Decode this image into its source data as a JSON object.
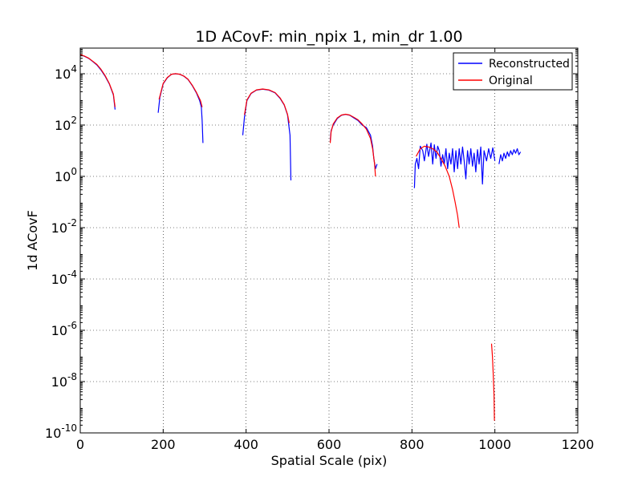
{
  "chart_data": {
    "type": "line",
    "title": "1D ACovF: min_npix 1, min_dr 1.00",
    "xlabel": "Spatial Scale (pix)",
    "ylabel": "1d ACovF",
    "xlim": [
      0,
      1200
    ],
    "ylim": [
      1e-10,
      100000.0
    ],
    "yscale": "log",
    "grid": true,
    "legend_position": "top-right",
    "x_ticks": [
      0,
      200,
      400,
      600,
      800,
      1000,
      1200
    ],
    "x_tick_labels": [
      "0",
      "200",
      "400",
      "600",
      "800",
      "1000",
      "1200"
    ],
    "y_ticks": [
      {
        "base": "10",
        "exp": "4"
      },
      {
        "base": "10",
        "exp": "2"
      },
      {
        "base": "10",
        "exp": "0"
      },
      {
        "base": "10",
        "exp": "-2"
      },
      {
        "base": "10",
        "exp": "-4"
      },
      {
        "base": "10",
        "exp": "-6"
      },
      {
        "base": "10",
        "exp": "-8"
      },
      {
        "base": "10",
        "exp": "-10"
      }
    ],
    "series": [
      {
        "name": "Reconstructed",
        "color": "#0000ff",
        "segments": [
          [
            [
              0,
              55000
            ],
            [
              10,
              48000
            ],
            [
              20,
              40000
            ],
            [
              30,
              30000
            ],
            [
              40,
              22000
            ],
            [
              50,
              14000
            ],
            [
              60,
              8000
            ],
            [
              70,
              4000
            ],
            [
              80,
              1500
            ],
            [
              84,
              400
            ]
          ],
          [
            [
              188,
              300
            ],
            [
              192,
              1200
            ],
            [
              200,
              4000
            ],
            [
              210,
              7000
            ],
            [
              220,
              9500
            ],
            [
              230,
              10000
            ],
            [
              240,
              9500
            ],
            [
              250,
              8000
            ],
            [
              260,
              6000
            ],
            [
              270,
              3500
            ],
            [
              280,
              1800
            ],
            [
              288,
              900
            ],
            [
              292,
              500
            ],
            [
              294,
              150
            ],
            [
              296,
              20
            ]
          ],
          [
            [
              392,
              40
            ],
            [
              396,
              200
            ],
            [
              402,
              900
            ],
            [
              412,
              1700
            ],
            [
              425,
              2300
            ],
            [
              440,
              2500
            ],
            [
              455,
              2300
            ],
            [
              470,
              1800
            ],
            [
              482,
              1100
            ],
            [
              492,
              600
            ],
            [
              500,
              250
            ],
            [
              506,
              40
            ],
            [
              508,
              0.7
            ]
          ],
          [
            [
              603,
              25
            ],
            [
              605,
              60
            ],
            [
              610,
              100
            ],
            [
              620,
              180
            ],
            [
              630,
              240
            ],
            [
              640,
              260
            ],
            [
              650,
              240
            ],
            [
              660,
              190
            ],
            [
              670,
              150
            ],
            [
              680,
              100
            ],
            [
              690,
              80
            ],
            [
              700,
              40
            ],
            [
              705,
              15
            ],
            [
              708,
              5
            ],
            [
              712,
              2
            ],
            [
              716,
              3
            ]
          ],
          [
            [
              806,
              0.35
            ],
            [
              808,
              3
            ],
            [
              812,
              5
            ],
            [
              816,
              2
            ],
            [
              820,
              15
            ],
            [
              826,
              10
            ],
            [
              830,
              4
            ],
            [
              836,
              18
            ],
            [
              840,
              6
            ],
            [
              846,
              20
            ],
            [
              850,
              3
            ],
            [
              854,
              17
            ],
            [
              858,
              5
            ],
            [
              862,
              15
            ],
            [
              866,
              10
            ],
            [
              870,
              2.5
            ],
            [
              874,
              7
            ],
            [
              878,
              3
            ],
            [
              882,
              12
            ],
            [
              886,
              2
            ],
            [
              890,
              8
            ],
            [
              894,
              3
            ],
            [
              898,
              12
            ],
            [
              902,
              1.5
            ],
            [
              906,
              10
            ],
            [
              910,
              2
            ],
            [
              914,
              12
            ],
            [
              918,
              3
            ],
            [
              922,
              14
            ],
            [
              926,
              4
            ],
            [
              930,
              0.8
            ],
            [
              934,
              10
            ],
            [
              938,
              3
            ],
            [
              942,
              12
            ],
            [
              946,
              2.5
            ],
            [
              950,
              8
            ],
            [
              954,
              1.5
            ],
            [
              958,
              11
            ],
            [
              962,
              3
            ],
            [
              966,
              14
            ],
            [
              970,
              0.5
            ],
            [
              974,
              10
            ],
            [
              980,
              4
            ],
            [
              985,
              12
            ],
            [
              990,
              5
            ],
            [
              995,
              13
            ],
            [
              1000,
              4
            ]
          ],
          [
            [
              1010,
              3
            ],
            [
              1014,
              7
            ],
            [
              1018,
              4
            ],
            [
              1022,
              8
            ],
            [
              1026,
              5
            ],
            [
              1030,
              9
            ],
            [
              1034,
              6
            ],
            [
              1038,
              10
            ],
            [
              1042,
              7
            ],
            [
              1046,
              11
            ],
            [
              1050,
              8
            ],
            [
              1054,
              12
            ],
            [
              1058,
              7
            ],
            [
              1062,
              9
            ]
          ]
        ]
      },
      {
        "name": "Original",
        "color": "#ff0000",
        "segments": [
          [
            [
              0,
              56000
            ],
            [
              10,
              49000
            ],
            [
              20,
              41000
            ],
            [
              30,
              31000
            ],
            [
              40,
              23000
            ],
            [
              50,
              15000
            ],
            [
              60,
              8500
            ],
            [
              70,
              4200
            ],
            [
              80,
              1600
            ],
            [
              84,
              500
            ]
          ],
          [
            [
              190,
              1000
            ],
            [
              200,
              4200
            ],
            [
              210,
              7200
            ],
            [
              220,
              9600
            ],
            [
              230,
              10100
            ],
            [
              240,
              9600
            ],
            [
              250,
              8100
            ],
            [
              260,
              6100
            ],
            [
              270,
              3600
            ],
            [
              280,
              1900
            ],
            [
              290,
              900
            ],
            [
              294,
              500
            ]
          ],
          [
            [
              396,
              250
            ],
            [
              402,
              950
            ],
            [
              412,
              1750
            ],
            [
              425,
              2350
            ],
            [
              440,
              2550
            ],
            [
              455,
              2350
            ],
            [
              470,
              1850
            ],
            [
              482,
              1150
            ],
            [
              492,
              620
            ],
            [
              500,
              260
            ],
            [
              504,
              120
            ]
          ],
          [
            [
              603,
              20
            ],
            [
              605,
              55
            ],
            [
              610,
              110
            ],
            [
              620,
              190
            ],
            [
              630,
              245
            ],
            [
              640,
              265
            ],
            [
              650,
              245
            ],
            [
              660,
              200
            ],
            [
              670,
              160
            ],
            [
              680,
              110
            ],
            [
              690,
              70
            ],
            [
              700,
              30
            ],
            [
              705,
              12
            ],
            [
              710,
              3
            ],
            [
              712,
              1
            ]
          ],
          [
            [
              810,
              6
            ],
            [
              820,
              12
            ],
            [
              830,
              15
            ],
            [
              840,
              14
            ],
            [
              850,
              12
            ],
            [
              860,
              9
            ],
            [
              870,
              5
            ],
            [
              880,
              2.5
            ],
            [
              890,
              1
            ],
            [
              898,
              0.3
            ],
            [
              904,
              0.1
            ],
            [
              910,
              0.03
            ],
            [
              914,
              0.01
            ]
          ],
          [
            [
              992,
              3e-07
            ],
            [
              994,
              1e-07
            ],
            [
              996,
              2e-08
            ],
            [
              998,
              3e-09
            ],
            [
              999,
              3e-10
            ]
          ]
        ]
      }
    ]
  }
}
